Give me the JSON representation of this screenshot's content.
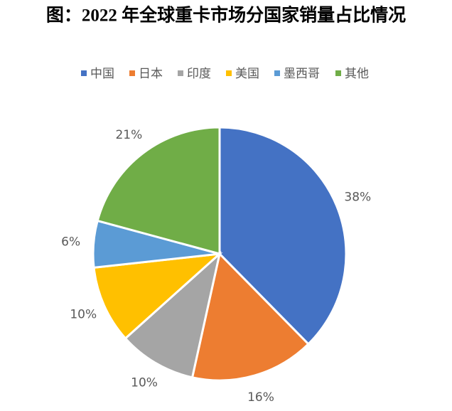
{
  "chart_data": {
    "type": "pie",
    "title": "图：2022 年全球重卡市场分国家销量占比情况",
    "categories": [
      "中国",
      "日本",
      "印度",
      "美国",
      "墨西哥",
      "其他"
    ],
    "values": [
      38,
      16,
      10,
      10,
      6,
      21
    ],
    "value_labels": [
      "38%",
      "16%",
      "10%",
      "10%",
      "6%",
      "21%"
    ],
    "colors": [
      "#4472c4",
      "#ed7d31",
      "#a5a5a5",
      "#ffc000",
      "#5b9bd5",
      "#70ad47"
    ],
    "legend": "top"
  }
}
